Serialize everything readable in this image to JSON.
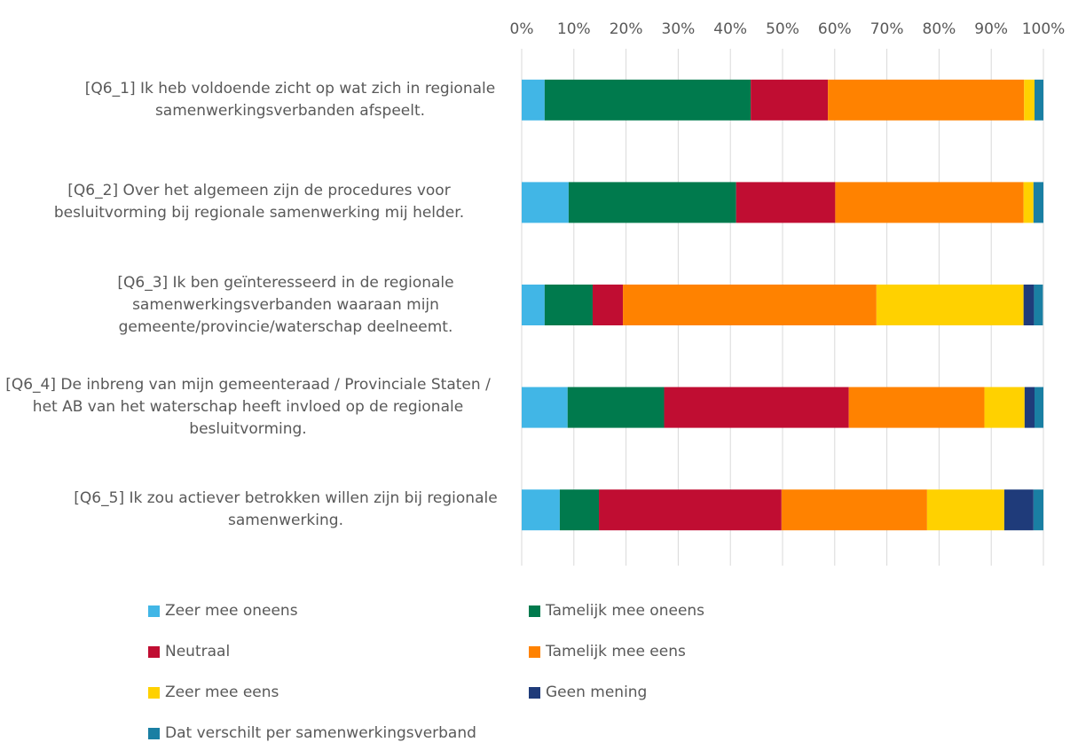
{
  "chart_data": {
    "type": "stacked_barh",
    "categories": [
      "[Q6_1] Ik heb voldoende zicht op wat zich in regionale samenwerkingsverbanden afspeelt.",
      "[Q6_2] Over het algemeen zijn de procedures voor besluitvorming bij regionale samenwerking mij helder.",
      "[Q6_3] Ik ben geïnteresseerd in de regionale samenwerkingsverbanden waaraan mijn gemeente/provincie/waterschap deelneemt.",
      "[Q6_4] De inbreng van mijn gemeenteraad / Provinciale Staten / het AB van het waterschap heeft invloed op de regionale besluitvorming.",
      "[Q6_5] Ik zou actiever betrokken willen zijn bij regionale samenwerking."
    ],
    "series": [
      {
        "name": "Zeer mee oneens",
        "color": "#41b6e6",
        "values": [
          4.4,
          9.0,
          4.4,
          8.8,
          7.3
        ]
      },
      {
        "name": "Tamelijk mee oneens",
        "color": "#007a4d",
        "values": [
          39.5,
          32.1,
          9.2,
          18.5,
          7.5
        ]
      },
      {
        "name": "Neutraal",
        "color": "#c00d32",
        "values": [
          14.8,
          19.0,
          5.8,
          35.4,
          35.0
        ]
      },
      {
        "name": "Tamelijk mee eens",
        "color": "#ff8200",
        "values": [
          37.6,
          36.1,
          48.6,
          26.0,
          27.9
        ]
      },
      {
        "name": "Zeer mee eens",
        "color": "#ffd100",
        "values": [
          2.0,
          1.9,
          28.2,
          7.7,
          14.8
        ]
      },
      {
        "name": "Geen mening",
        "color": "#1f3b7a",
        "values": [
          0,
          0,
          2.0,
          1.9,
          5.6
        ]
      },
      {
        "name": "Dat verschilt per samenwerkingsverband",
        "color": "#1a7fa3",
        "values": [
          1.7,
          1.9,
          1.7,
          1.7,
          1.9
        ]
      }
    ],
    "xlim": [
      0,
      100
    ],
    "xticks": [
      {
        "value": 0,
        "label": "0%"
      },
      {
        "value": 10,
        "label": "10%"
      },
      {
        "value": 20,
        "label": "20%"
      },
      {
        "value": 30,
        "label": "30%"
      },
      {
        "value": 40,
        "label": "40%"
      },
      {
        "value": 50,
        "label": "50%"
      },
      {
        "value": 60,
        "label": "60%"
      },
      {
        "value": 70,
        "label": "70%"
      },
      {
        "value": 80,
        "label": "80%"
      },
      {
        "value": 90,
        "label": "90%"
      },
      {
        "value": 100,
        "label": "100%"
      }
    ],
    "grid": true,
    "legend": "bottom"
  }
}
